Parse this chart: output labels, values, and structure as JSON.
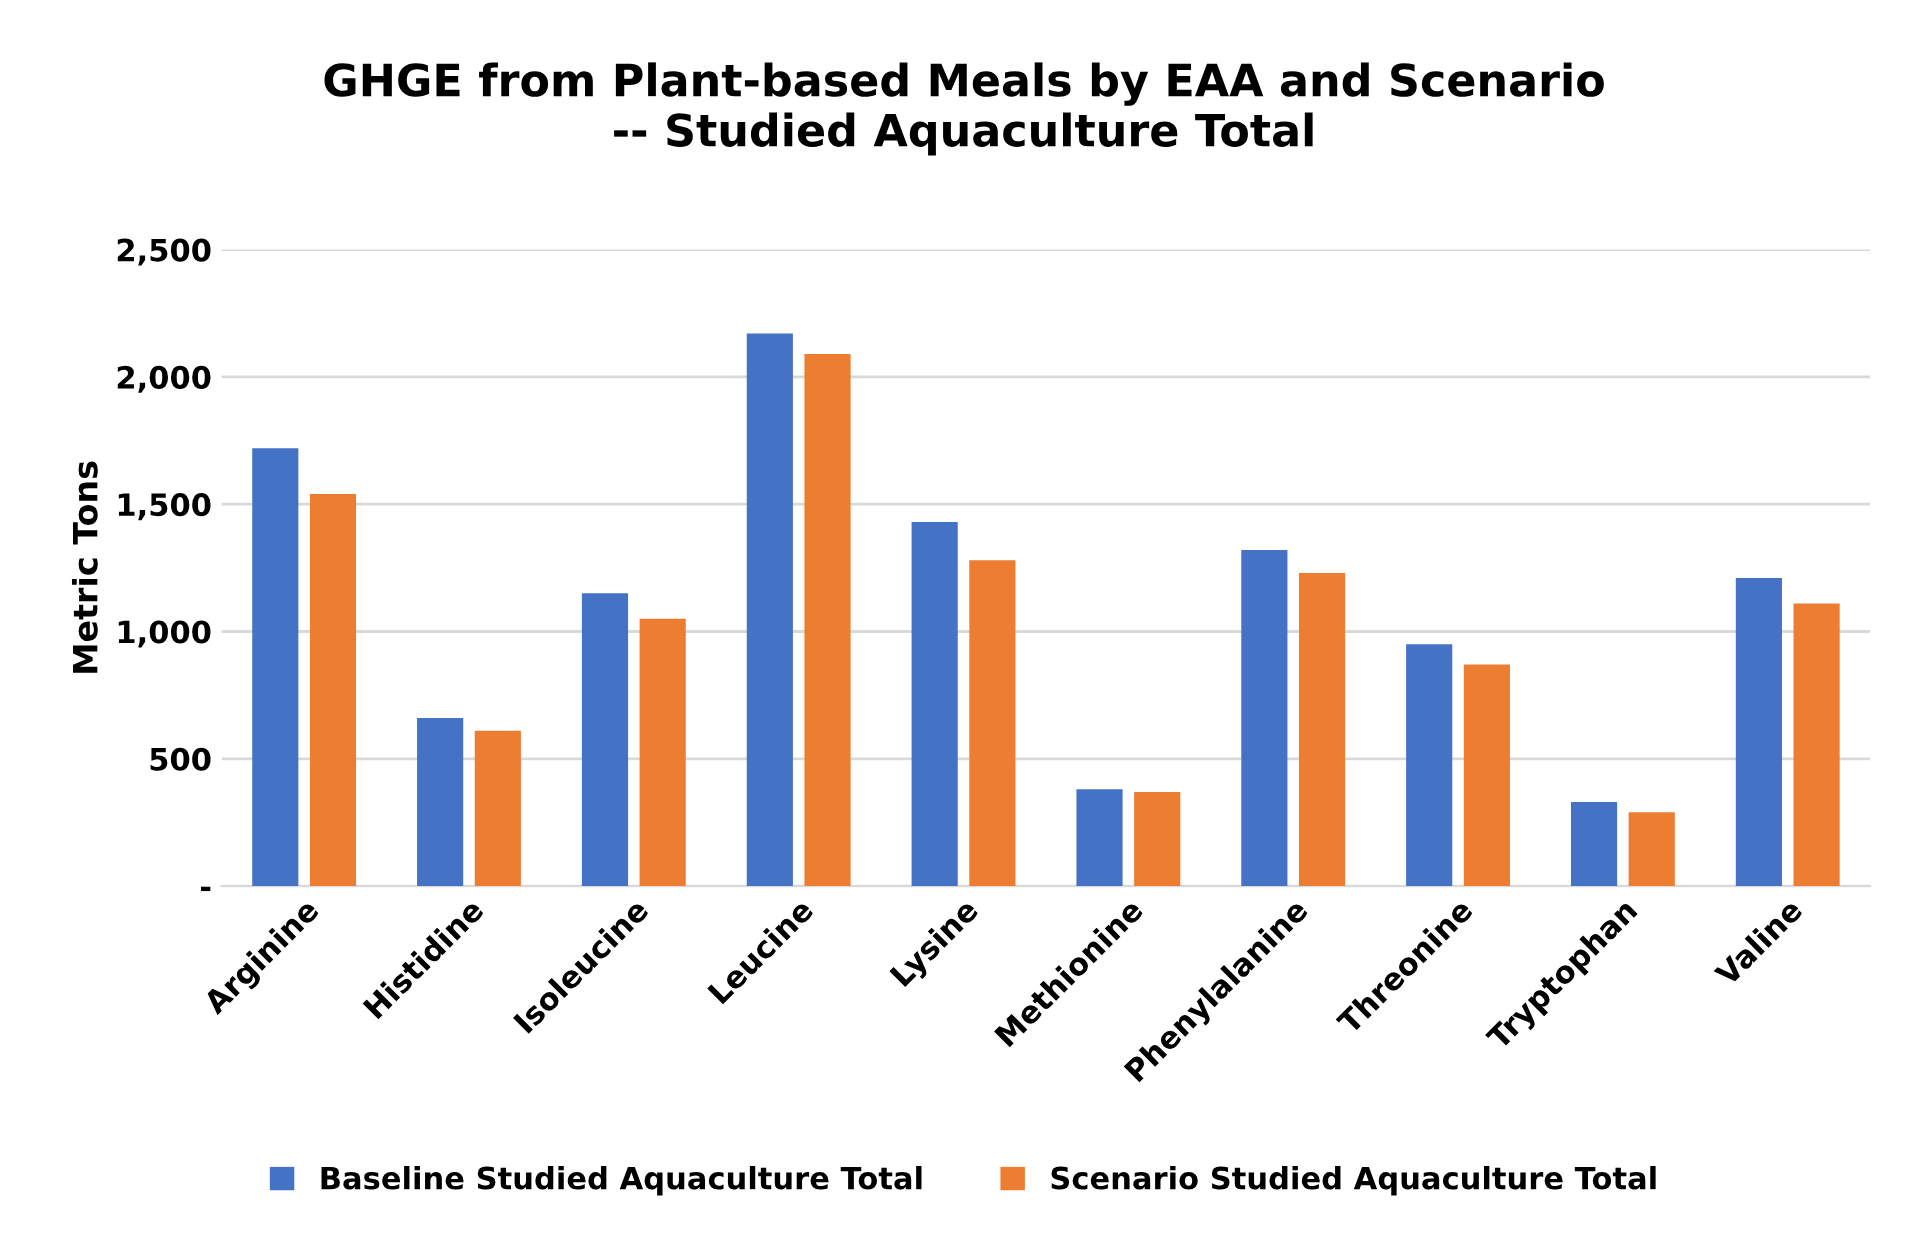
{
  "chart_data": {
    "type": "bar",
    "title": "GHGE from Plant-based Meals by EAA and Scenario\n-- Studied Aquaculture Total",
    "ylabel": "Metric Tons",
    "categories": [
      "Arginine",
      "Histidine",
      "Isoleucine",
      "Leucine",
      "Lysine",
      "Methionine",
      "Phenylalanine",
      "Threonine",
      "Tryptophan",
      "Valine"
    ],
    "series": [
      {
        "name": "Baseline Studied Aquaculture Total",
        "color": "#4472c4",
        "values": [
          1720,
          660,
          1150,
          2170,
          1430,
          380,
          1320,
          950,
          330,
          1210
        ]
      },
      {
        "name": "Scenario Studied Aquaculture Total",
        "color": "#ed7d31",
        "values": [
          1540,
          610,
          1050,
          2090,
          1280,
          370,
          1230,
          870,
          290,
          1110
        ]
      }
    ],
    "ylim": [
      0,
      2500
    ],
    "yticks": [
      {
        "value": 0,
        "label": "-"
      },
      {
        "value": 500,
        "label": "500"
      },
      {
        "value": 1000,
        "label": "1,000"
      },
      {
        "value": 1500,
        "label": "1,500"
      },
      {
        "value": 2000,
        "label": "2,000"
      },
      {
        "value": 2500,
        "label": "2,500"
      }
    ],
    "grid": "y",
    "legend": "bottom"
  }
}
